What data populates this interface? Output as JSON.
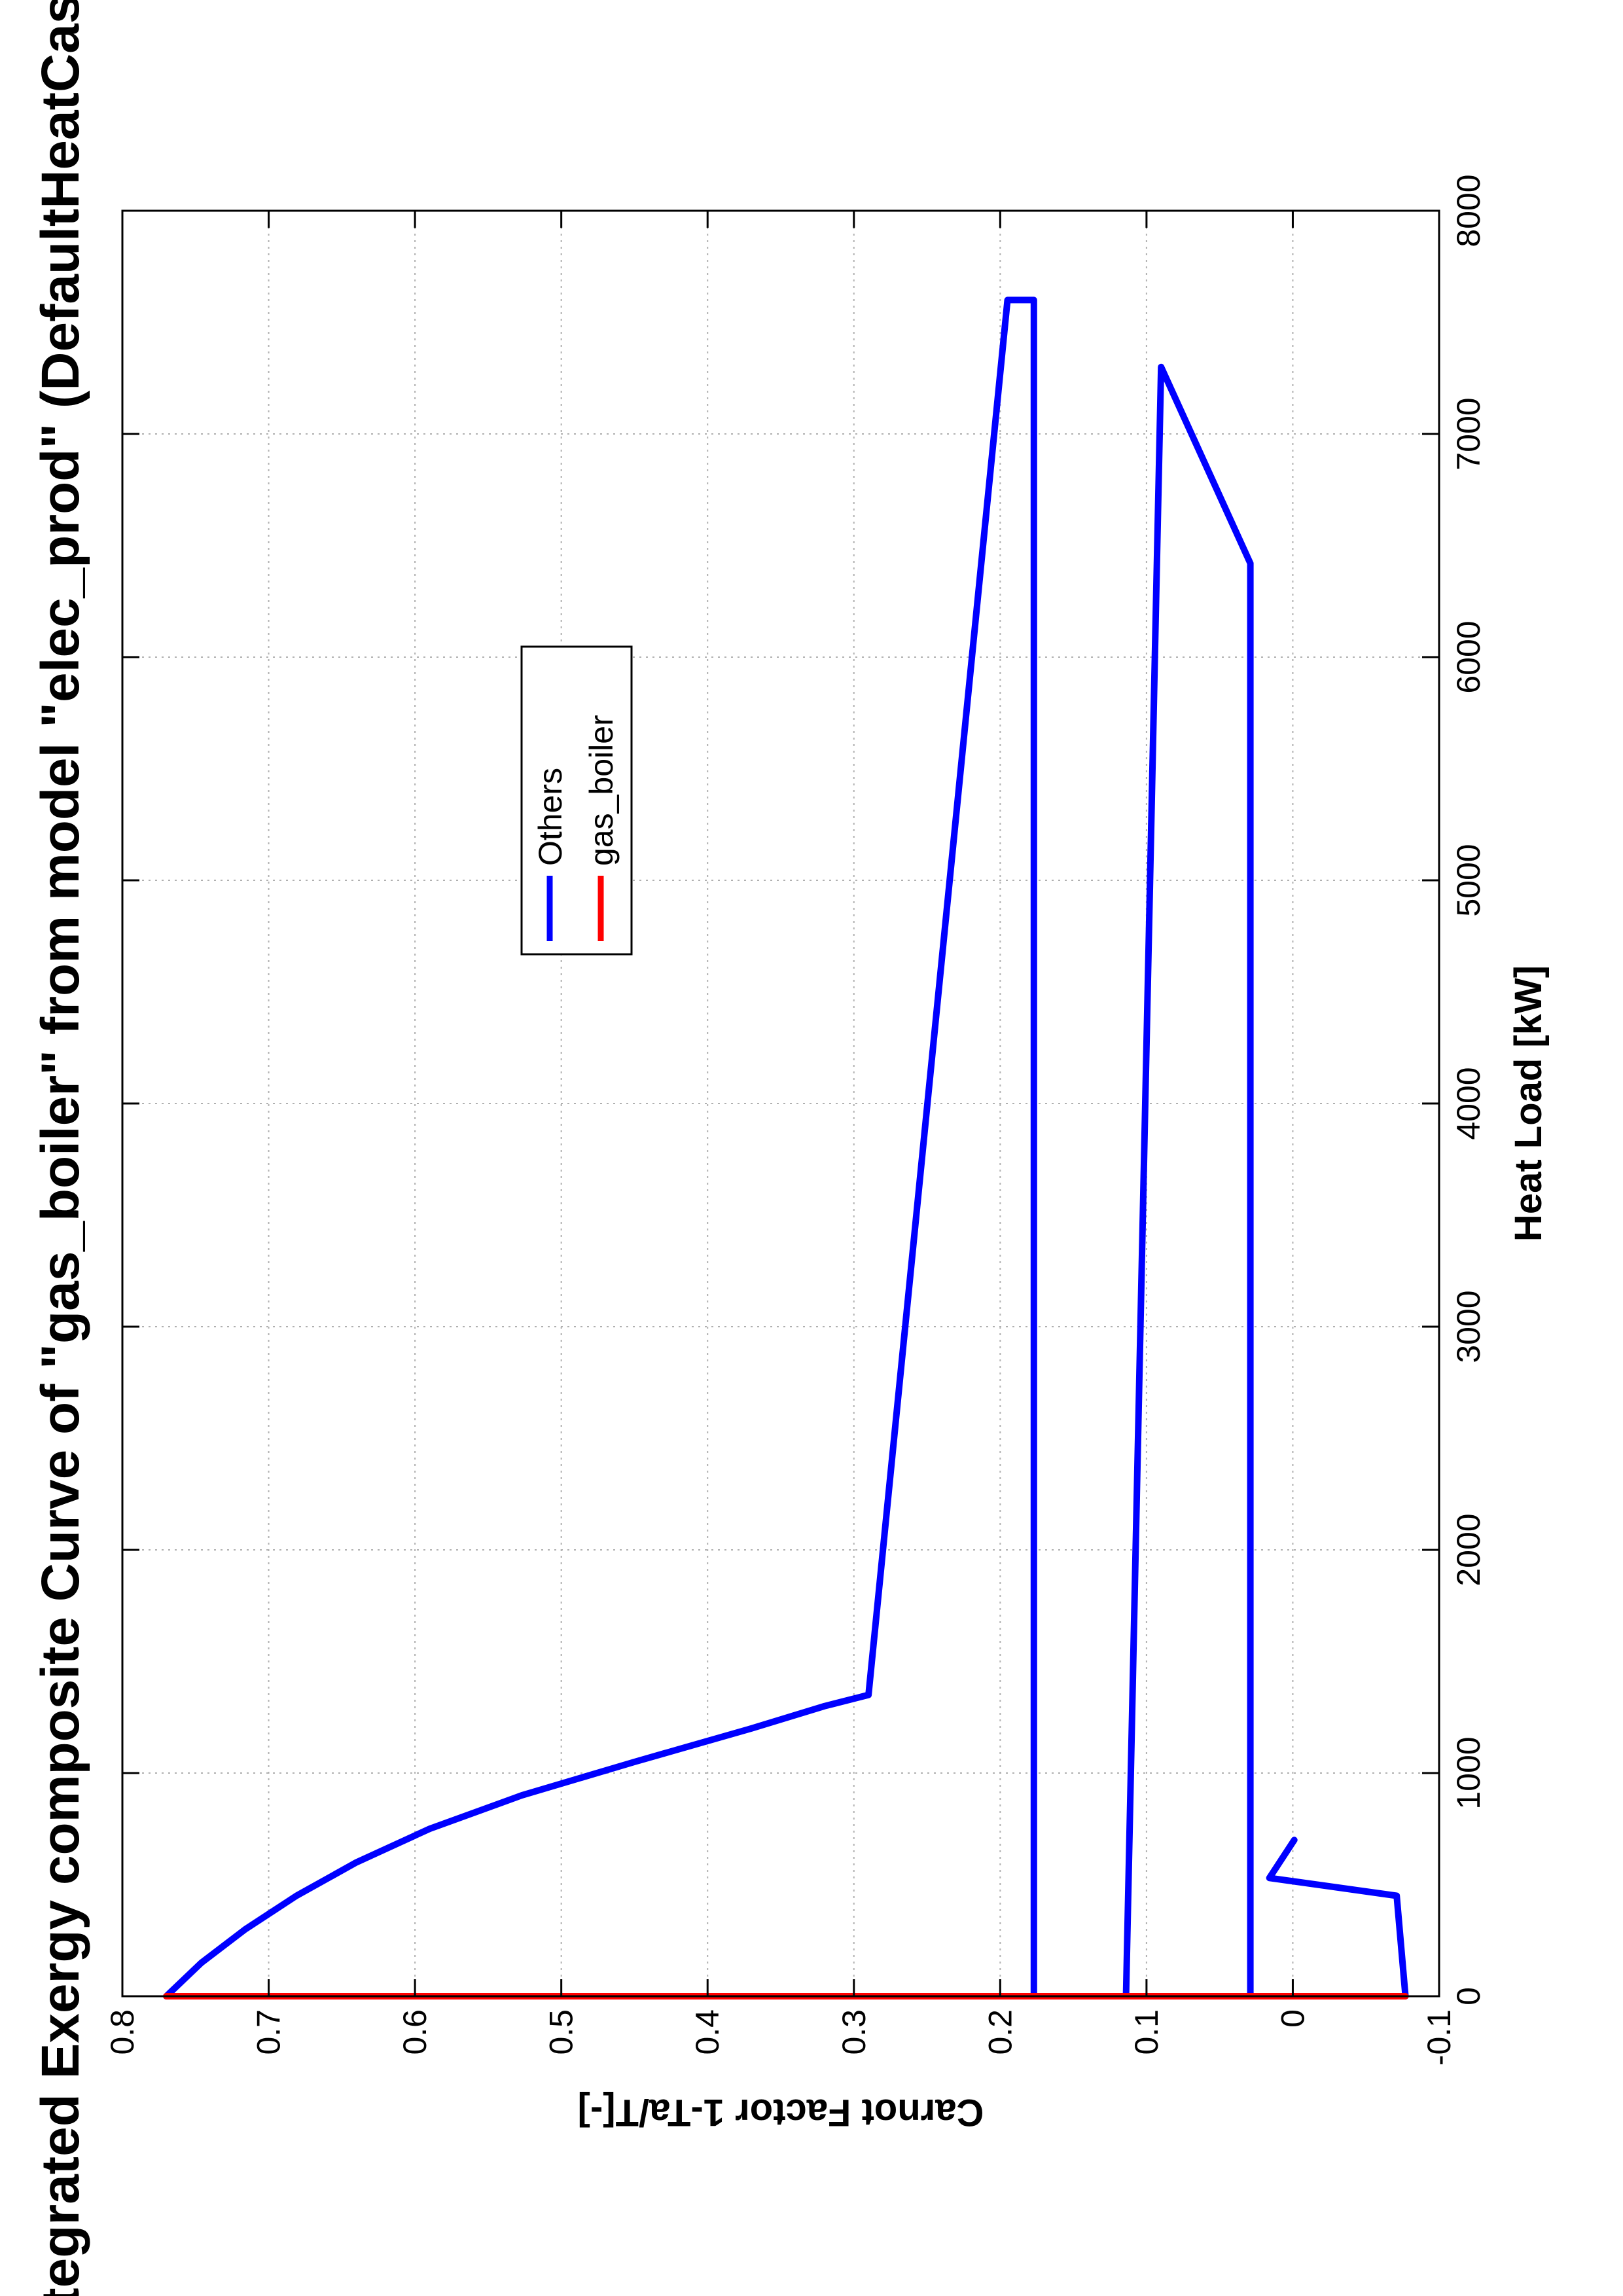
{
  "chart_data": {
    "type": "line",
    "title": "Integrated Exergy composite Curve of \"gas_boiler\" from model \"elec_prod\" (DefaultHeatCascade)",
    "xlabel": "Heat Load [kW]",
    "ylabel": "Carnot Factor 1-Ta/T[-]",
    "xlim": [
      0,
      8000
    ],
    "ylim": [
      -0.1,
      0.8
    ],
    "x_ticks": [
      "0",
      "1000",
      "2000",
      "3000",
      "4000",
      "5000",
      "6000",
      "7000",
      "8000"
    ],
    "y_ticks": [
      "-0.1",
      "0",
      "0.1",
      "0.2",
      "0.3",
      "0.4",
      "0.5",
      "0.6",
      "0.7",
      "0.8"
    ],
    "grid": true,
    "orientation": "rotated 90 degrees counter-clockwise on page",
    "legend": {
      "placement": "top-right",
      "entries": [
        {
          "name": "Others",
          "color": "#0000ff"
        },
        {
          "name": "gas_boiler",
          "color": "#ff0000"
        }
      ]
    },
    "series": [
      {
        "name": "Others",
        "color": "#0000ff",
        "segments": [
          {
            "x": [
              0,
              150,
              300,
              450,
              600,
              750,
              900,
              1050,
              1200,
              1300,
              1350,
              7600,
              7600,
              0,
              0,
              7300,
              6420,
              0,
              0,
              450,
              530,
              700,
              530
            ],
            "y": [
              0.77,
              0.746,
              0.716,
              0.681,
              0.64,
              0.59,
              0.527,
              0.45,
              0.37,
              0.32,
              0.29,
              0.195,
              0.177,
              0.177,
              0.114,
              0.09,
              0.029,
              0.029,
              -0.077,
              -0.071,
              0.016,
              -0.001,
              0.016
            ]
          }
        ]
      },
      {
        "name": "gas_boiler",
        "color": "#ff0000",
        "segments": [
          {
            "x": [
              0,
              0
            ],
            "y": [
              -0.077,
              0.77
            ]
          }
        ]
      }
    ]
  }
}
